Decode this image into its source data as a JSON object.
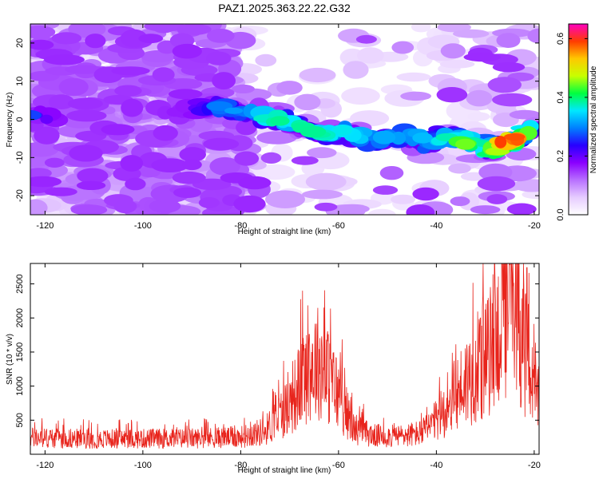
{
  "title": "PAZ1.2025.363.22.22.G32",
  "chart_data": [
    {
      "type": "heatmap",
      "xlabel": "Height of straight line (km)",
      "ylabel": "Frequency (Hz)",
      "xlim": [
        -123,
        -19
      ],
      "ylim": [
        -25,
        25
      ],
      "xticks": [
        -120,
        -100,
        -80,
        -60,
        -40,
        -20
      ],
      "yticks": [
        -20,
        -10,
        0,
        10,
        20
      ],
      "xtick_labels": [
        "-120",
        "-100",
        "-80",
        "-60",
        "-40",
        "-20"
      ],
      "ytick_labels": [
        "-20",
        "-10",
        "0",
        "10",
        "20"
      ],
      "colorbar": {
        "label": "Normalized spectral amplitude",
        "range": [
          0.0,
          0.65
        ],
        "ticks": [
          0.0,
          0.2,
          0.4,
          0.6
        ],
        "tick_labels": [
          "0.0",
          "0.2",
          "0.4",
          "0.6"
        ],
        "colormap": [
          "#ffffff",
          "#e6ccff",
          "#b870ff",
          "#8a00ff",
          "#2800ff",
          "#0080ff",
          "#00e8ff",
          "#00ff40",
          "#c8ff00",
          "#ffc800",
          "#ff3c00",
          "#ff00c0"
        ]
      },
      "ridge": [
        {
          "x": -122,
          "y": 1,
          "amp": 0.25
        },
        {
          "x": -116,
          "y": 0,
          "amp": 0.12
        },
        {
          "x": -108,
          "y": 2,
          "amp": 0.12
        },
        {
          "x": -100,
          "y": 1,
          "amp": 0.12
        },
        {
          "x": -90,
          "y": 3,
          "amp": 0.18
        },
        {
          "x": -83,
          "y": 3,
          "amp": 0.3
        },
        {
          "x": -77,
          "y": 1,
          "amp": 0.3
        },
        {
          "x": -72,
          "y": 0,
          "amp": 0.4
        },
        {
          "x": -66,
          "y": -3,
          "amp": 0.35
        },
        {
          "x": -62,
          "y": -4,
          "amp": 0.4
        },
        {
          "x": -58,
          "y": -3,
          "amp": 0.35
        },
        {
          "x": -53,
          "y": -6,
          "amp": 0.3
        },
        {
          "x": -46,
          "y": -4,
          "amp": 0.3
        },
        {
          "x": -42,
          "y": -6,
          "amp": 0.35
        },
        {
          "x": -38,
          "y": -4,
          "amp": 0.35
        },
        {
          "x": -33,
          "y": -6,
          "amp": 0.45
        },
        {
          "x": -29,
          "y": -8,
          "amp": 0.4
        },
        {
          "x": -26,
          "y": -6,
          "amp": 0.62
        },
        {
          "x": -23,
          "y": -5,
          "amp": 0.55
        },
        {
          "x": -20,
          "y": -2,
          "amp": 0.3
        }
      ]
    },
    {
      "type": "line",
      "xlabel": "Height of straight line (km)",
      "ylabel": "SNR (10 * v/v)",
      "xlim": [
        -123,
        -19
      ],
      "ylim": [
        0,
        2800
      ],
      "xticks": [
        -120,
        -100,
        -80,
        -60,
        -40,
        -20
      ],
      "yticks": [
        500,
        1000,
        1500,
        2000,
        2500
      ],
      "xtick_labels": [
        "-120",
        "-100",
        "-80",
        "-60",
        "-40",
        "-20"
      ],
      "ytick_labels": [
        "500",
        "1000",
        "1500",
        "2000",
        "2500"
      ],
      "series": [
        {
          "name": "SNR",
          "color": "#e8241c",
          "envelope": {
            "x": [
              -123,
              -110,
              -90,
              -80,
              -75,
              -70,
              -66,
              -64,
              -60,
              -57,
              -53,
              -48,
              -43,
              -40,
              -37,
              -34,
              -30,
              -28,
              -26,
              -24,
              -22,
              -20,
              -19
            ],
            "y": [
              250,
              230,
              240,
              260,
              350,
              750,
              1300,
              1400,
              900,
              400,
              280,
              270,
              320,
              500,
              800,
              1100,
              1400,
              1700,
              2100,
              2200,
              1600,
              900,
              800
            ]
          },
          "peaks": [
            {
              "x": -66,
              "y": 1760
            },
            {
              "x": -31,
              "y": 2000
            },
            {
              "x": -25,
              "y": 2780
            },
            {
              "x": -21.5,
              "y": 2740
            }
          ]
        }
      ]
    }
  ]
}
